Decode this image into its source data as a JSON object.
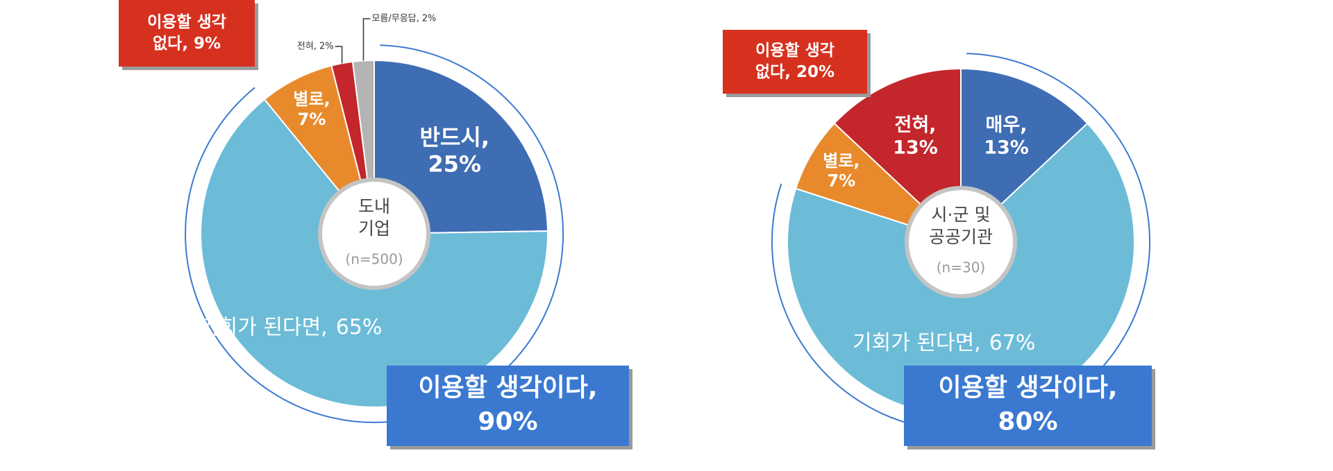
{
  "chart_data": [
    {
      "type": "donut",
      "center_label": [
        "도내",
        "기업"
      ],
      "center_note": "(n=500)",
      "categories": [
        "반드시,",
        "기회가 된다면,",
        "별로,",
        "전혀,",
        "모름/무응답,"
      ],
      "values": [
        25,
        65,
        7,
        2,
        2
      ],
      "value_labels": [
        "25%",
        "65%",
        "7%",
        "2%",
        "2%"
      ],
      "colors": [
        "#3f6db3",
        "#6cbcd8",
        "#e88a2c",
        "#c3262b",
        "#b4b4b4"
      ],
      "annotations": [
        {
          "lines": [
            "이용할 생각",
            "없다, 9%"
          ],
          "color": "#d6311f"
        },
        {
          "lines": [
            "이용할 생각이다,",
            "90%"
          ],
          "color": "#3b79d1"
        }
      ]
    },
    {
      "type": "donut",
      "center_label": [
        "시·군 및",
        "공공기관"
      ],
      "center_note": "(n=30)",
      "categories": [
        "매우,",
        "기회가 된다면,",
        "별로,",
        "전혀,"
      ],
      "values": [
        13,
        67,
        7,
        13
      ],
      "value_labels": [
        "13%",
        "67%",
        "7%",
        "13%"
      ],
      "colors": [
        "#3f6db3",
        "#6cbcd8",
        "#e88a2c",
        "#c3262b"
      ],
      "annotations": [
        {
          "lines": [
            "이용할 생각",
            "없다, 20%"
          ],
          "color": "#d6311f"
        },
        {
          "lines": [
            "이용할 생각이다,",
            "80%"
          ],
          "color": "#3b79d1"
        }
      ]
    }
  ]
}
